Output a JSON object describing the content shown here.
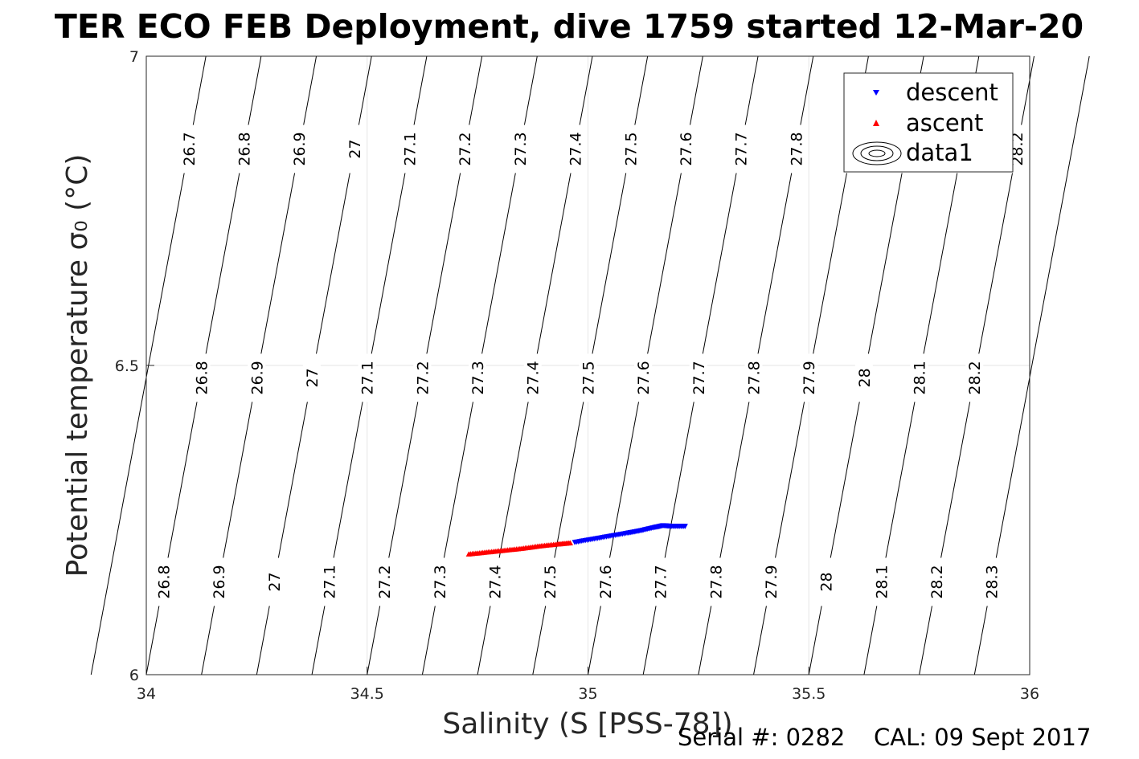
{
  "chart_data": {
    "type": "scatter",
    "title": "TER ECO FEB Deployment, dive 1759 started 12-Mar-20",
    "xlabel": "Salinity (S [PSS-78])",
    "ylabel": "Potential temperature σ₀ (°C)",
    "xlim": [
      34,
      36
    ],
    "ylim": [
      6,
      7
    ],
    "x_ticks": [
      "34",
      "34.5",
      "35",
      "35.5",
      "36"
    ],
    "y_ticks": [
      "6",
      "6.5",
      "7"
    ],
    "grid": true,
    "legend_position": "top-right",
    "legend": [
      "descent",
      "ascent",
      "data1"
    ],
    "contours": {
      "levels": [
        "26.7",
        "26.8",
        "26.9",
        "27",
        "27.1",
        "27.2",
        "27.3",
        "27.4",
        "27.5",
        "27.6",
        "27.7",
        "27.8",
        "27.9",
        "28",
        "28.1",
        "28.2",
        "28.3"
      ],
      "slope_salinity_per_degree": 0.26
    },
    "series": [
      {
        "name": "descent",
        "color": "#0000ff",
        "marker": "triangle-down",
        "points": [
          [
            34.97,
            6.214
          ],
          [
            35.01,
            6.219
          ],
          [
            35.05,
            6.224
          ],
          [
            35.09,
            6.229
          ],
          [
            35.12,
            6.233
          ],
          [
            35.15,
            6.238
          ],
          [
            35.17,
            6.241
          ],
          [
            35.19,
            6.24
          ],
          [
            35.22,
            6.24
          ]
        ]
      },
      {
        "name": "ascent",
        "color": "#ff0000",
        "marker": "triangle-up",
        "points": [
          [
            34.73,
            6.195
          ],
          [
            34.77,
            6.198
          ],
          [
            34.81,
            6.201
          ],
          [
            34.85,
            6.204
          ],
          [
            34.89,
            6.208
          ],
          [
            34.93,
            6.211
          ],
          [
            34.96,
            6.213
          ]
        ]
      }
    ]
  },
  "footer": {
    "serial": "Serial #: 0282",
    "cal": "CAL: 09 Sept 2017"
  }
}
